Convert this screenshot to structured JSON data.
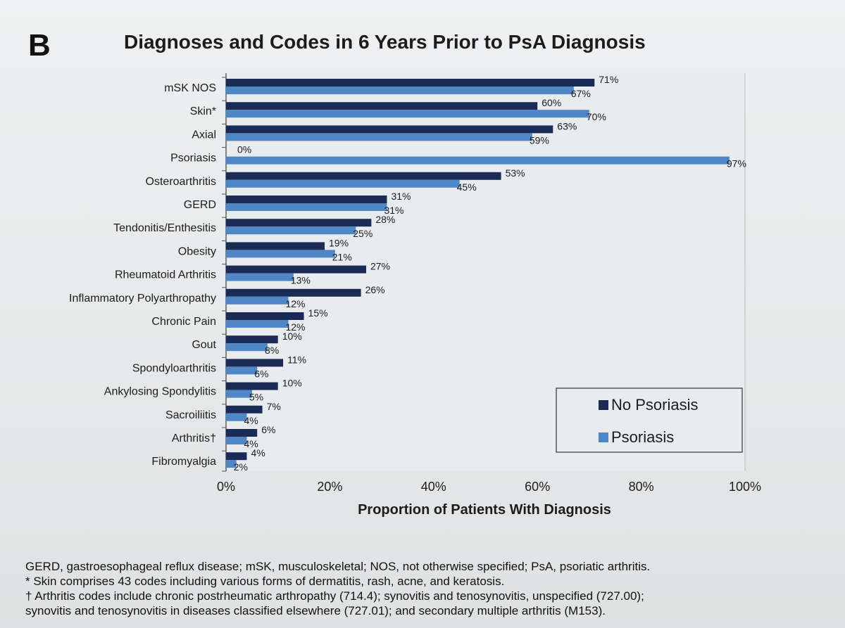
{
  "panel_label": "B",
  "chart_data": {
    "type": "bar",
    "orientation": "horizontal",
    "title": "Diagnoses and Codes in 6 Years Prior to PsA Diagnosis",
    "xlabel": "Proportion of Patients With Diagnosis",
    "ylabel": "",
    "xlim": [
      0,
      100
    ],
    "x_ticks": [
      "0%",
      "20%",
      "40%",
      "60%",
      "80%",
      "100%"
    ],
    "grid": false,
    "legend_position": "bottom-right",
    "categories": [
      "mSK NOS",
      "Skin*",
      "Axial",
      "Psoriasis",
      "Osteroarthritis",
      "GERD",
      "Tendonitis/Enthesitis",
      "Obesity",
      "Rheumatoid Arthritis",
      "Inflammatory Polyarthropathy",
      "Chronic Pain",
      "Gout",
      "Spondyloarthritis",
      "Ankylosing Spondylitis",
      "Sacroiliitis",
      "Arthritis†",
      "Fibromyalgia"
    ],
    "series": [
      {
        "name": "No Psoriasis",
        "color": "#1a2b55",
        "values": [
          71,
          60,
          63,
          0,
          53,
          31,
          28,
          19,
          27,
          26,
          15,
          10,
          11,
          10,
          7,
          6,
          4
        ]
      },
      {
        "name": "Psoriasis",
        "color": "#4f86c6",
        "values": [
          67,
          70,
          59,
          97,
          45,
          31,
          25,
          21,
          13,
          12,
          12,
          8,
          6,
          5,
          4,
          4,
          2
        ]
      }
    ]
  },
  "footnotes": [
    "GERD, gastroesophageal reflux disease; mSK, musculoskeletal; NOS, not otherwise specified; PsA, psoriatic arthritis.",
    "* Skin comprises 43 codes including various forms of dermatitis, rash, acne, and keratosis.",
    "† Arthritis codes include chronic postrheumatic arthropathy (714.4); synovitis and tenosynovitis, unspecified (727.00);",
    "synovitis and tenosynovitis in diseases classified elsewhere (727.01); and secondary multiple arthritis (M153)."
  ]
}
